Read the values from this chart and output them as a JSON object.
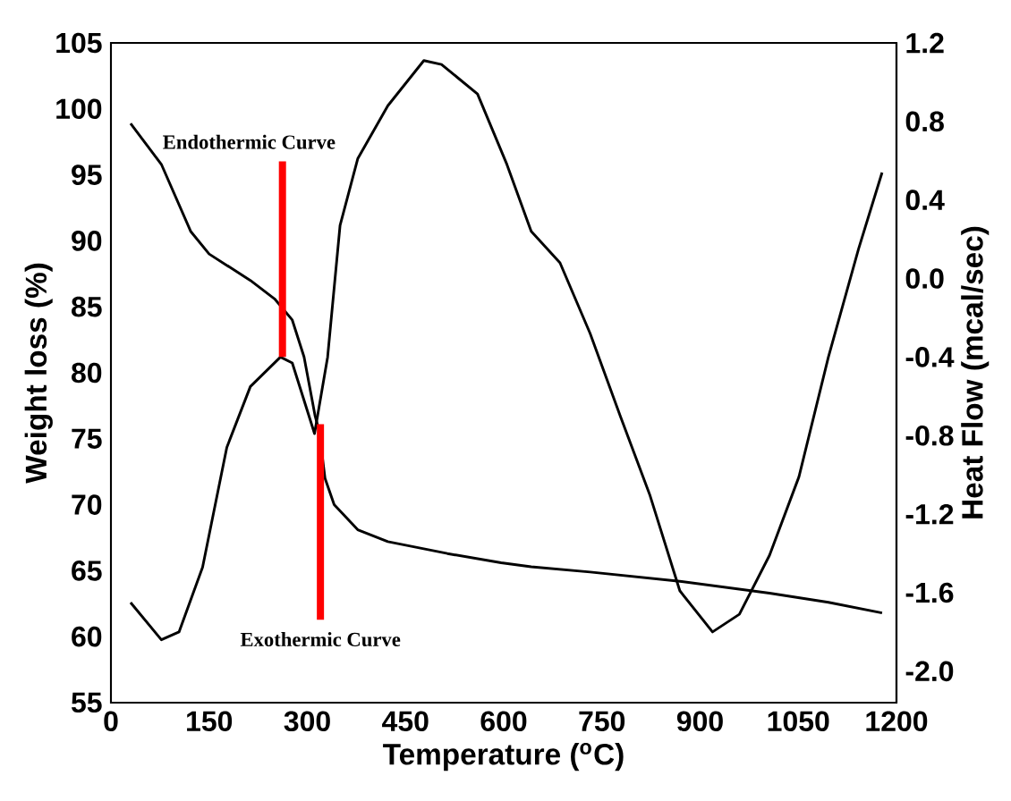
{
  "chart_data": {
    "type": "line",
    "xlabel": "Temperature ($^{o}$C)",
    "ylabel": "Weight loss (%)",
    "y2label": "Heat Flow (mcal/sec)",
    "xlim": [
      0,
      1200
    ],
    "xticks": [
      0,
      150,
      300,
      450,
      600,
      750,
      900,
      1050,
      1200
    ],
    "ylim": [
      55,
      105
    ],
    "yticks": [
      55,
      60,
      65,
      70,
      75,
      80,
      85,
      90,
      95,
      100,
      105
    ],
    "y2lim": [
      -2.16,
      1.2
    ],
    "y2ticks": [
      {
        "value": -2.0,
        "label": "-2.0"
      },
      {
        "value": -1.6,
        "label": "-1.6"
      },
      {
        "value": -1.2,
        "label": "-1.2"
      },
      {
        "value": -0.8,
        "label": "-0.8"
      },
      {
        "value": -0.4,
        "label": "-0.4"
      },
      {
        "value": 0.0,
        "label": "0.0"
      },
      {
        "value": 0.4,
        "label": "0.4"
      },
      {
        "value": 0.8,
        "label": "0.8"
      },
      {
        "value": 1.2,
        "label": "1.2"
      }
    ],
    "marker": "none",
    "line_style": "solid",
    "series": [
      {
        "color": "#000000",
        "x": [
          30,
          77,
          122,
          150,
          213,
          250,
          277,
          295,
          312,
          318,
          327,
          341,
          377,
          423,
          514,
          596,
          642,
          732,
          869,
          1006,
          1096,
          1178
        ],
        "values": [
          98.9,
          95.8,
          90.7,
          89,
          87,
          85.6,
          84,
          81.2,
          76.7,
          75.6,
          72,
          70,
          68.1,
          67.2,
          66.3,
          65.6,
          65.3,
          64.9,
          64.2,
          63.3,
          62.6,
          61.8
        ]
      },
      {
        "color": "#000000",
        "axis": "y2",
        "x": [
          30,
          77,
          104,
          140,
          177,
          213,
          259,
          277,
          311,
          331,
          350,
          377,
          423,
          478,
          505,
          560,
          605,
          642,
          686,
          732,
          778,
          823,
          869,
          919,
          960,
          1006,
          1051,
          1096,
          1142,
          1178
        ],
        "values": [
          -1.65,
          -1.84,
          -1.8,
          -1.47,
          -0.86,
          -0.55,
          -0.4,
          -0.43,
          -0.79,
          -0.4,
          0.27,
          0.61,
          0.88,
          1.11,
          1.09,
          0.94,
          0.58,
          0.24,
          0.08,
          -0.28,
          -0.7,
          -1.1,
          -1.59,
          -1.8,
          -1.71,
          -1.41,
          -1.01,
          -0.4,
          0.15,
          0.54
        ]
      }
    ],
    "annotations": [
      {
        "text": "Endothermic Curve",
        "x": 262,
        "y": 81.2
      },
      {
        "text": "Exothermic Curve",
        "x": 320,
        "y": 76.1
      }
    ]
  }
}
